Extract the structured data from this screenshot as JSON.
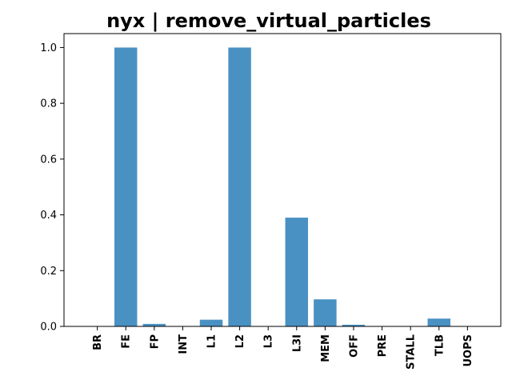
{
  "chart_data": {
    "type": "bar",
    "title": "nyx | remove_virtual_particles",
    "xlabel": "",
    "ylabel": "",
    "categories": [
      "BR",
      "FE",
      "FP",
      "INT",
      "L1",
      "L2",
      "L3",
      "L3I",
      "MEM",
      "OFF",
      "PRE",
      "STALL",
      "TLB",
      "UOPS"
    ],
    "values": [
      0.0,
      1.0,
      0.009,
      0.0,
      0.024,
      1.0,
      0.0,
      0.39,
      0.097,
      0.006,
      0.0,
      0.0,
      0.028,
      0.0
    ],
    "ylim": [
      0,
      1.05
    ],
    "yticks": [
      "0.0",
      "0.2",
      "0.4",
      "0.6",
      "0.8",
      "1.0"
    ],
    "grid": false,
    "colors": {
      "bar": "#4a91c3",
      "axis": "#000000"
    }
  }
}
